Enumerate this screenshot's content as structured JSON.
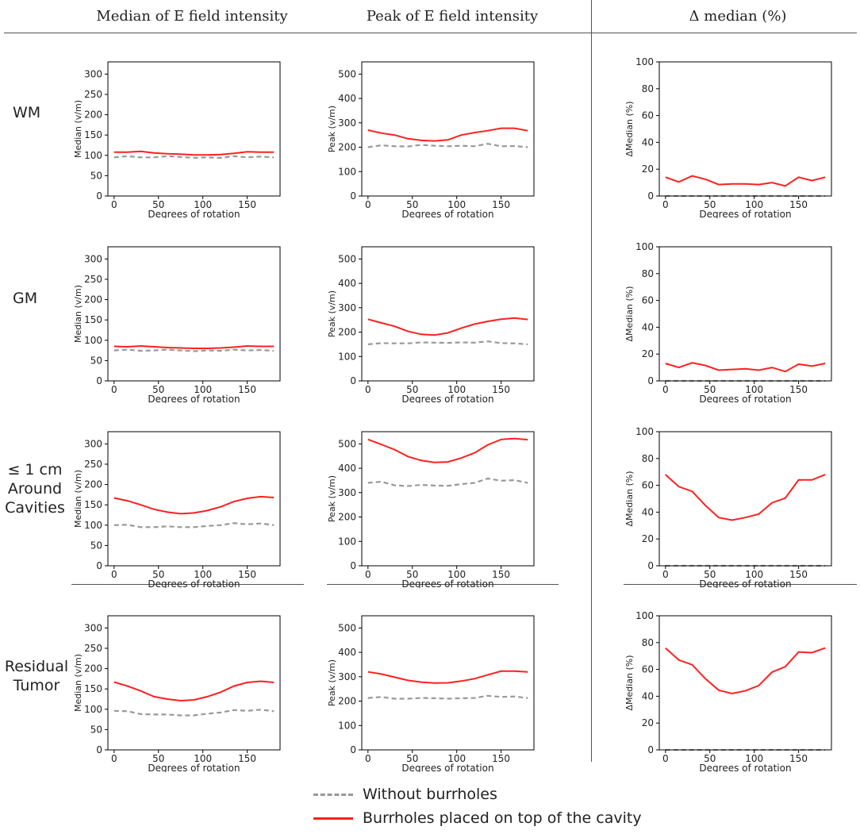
{
  "headers": {
    "col1": "Median of E field intensity",
    "col2": "Peak of E field intensity",
    "col3": "Δ median (%)"
  },
  "row_labels": {
    "wm": "WM",
    "gm": "GM",
    "cav_l1": "≤ 1 cm",
    "cav_l2": "Around",
    "cav_l3": "Cavities",
    "tumor_l1": "Residual",
    "tumor_l2": "Tumor"
  },
  "legend": {
    "without": "Without burrholes",
    "with": "Burrholes placed on top of the cavity",
    "without_color": "#999999",
    "with_color": "#ff2020"
  },
  "chart_data": [
    {
      "id": "wm-median",
      "type": "line",
      "xlabel": "Degrees of rotation",
      "ylabel": "Median (v/m)",
      "xlim": [
        -7,
        187
      ],
      "ylim": [
        0,
        330
      ],
      "xticks": [
        0,
        50,
        100,
        150
      ],
      "yticks": [
        0,
        50,
        100,
        150,
        200,
        250,
        300
      ],
      "x": [
        0,
        15,
        30,
        45,
        60,
        75,
        90,
        105,
        120,
        135,
        150,
        165,
        180
      ],
      "series": [
        {
          "name": "Burrholes placed on top of the cavity",
          "values": [
            108,
            108,
            110,
            106,
            104,
            103,
            101,
            101,
            102,
            105,
            109,
            108,
            108
          ]
        },
        {
          "name": "Without burrholes",
          "values": [
            95,
            98,
            95,
            95,
            98,
            96,
            94,
            95,
            94,
            98,
            95,
            97,
            95
          ]
        }
      ]
    },
    {
      "id": "wm-peak",
      "type": "line",
      "xlabel": "Degrees of rotation",
      "ylabel": "Peak (v/m)",
      "xlim": [
        -7,
        187
      ],
      "ylim": [
        0,
        550
      ],
      "xticks": [
        0,
        50,
        100,
        150
      ],
      "yticks": [
        0,
        100,
        200,
        300,
        400,
        500
      ],
      "x": [
        0,
        15,
        30,
        45,
        60,
        75,
        90,
        105,
        120,
        135,
        150,
        165,
        180
      ],
      "series": [
        {
          "name": "Burrholes placed on top of the cavity",
          "values": [
            270,
            258,
            250,
            235,
            228,
            226,
            230,
            250,
            260,
            268,
            278,
            278,
            268
          ]
        },
        {
          "name": "Without burrholes",
          "values": [
            200,
            208,
            204,
            203,
            210,
            206,
            204,
            206,
            204,
            214,
            204,
            205,
            200
          ]
        }
      ]
    },
    {
      "id": "wm-delta",
      "type": "line",
      "xlabel": "Degrees of rotation",
      "ylabel": "ΔMedian (%)",
      "xlim": [
        -7,
        187
      ],
      "ylim": [
        0,
        100
      ],
      "xticks": [
        0,
        50,
        100,
        150
      ],
      "yticks": [
        0,
        20,
        40,
        60,
        80,
        100
      ],
      "x": [
        0,
        15,
        30,
        45,
        60,
        75,
        90,
        105,
        120,
        135,
        150,
        165,
        180
      ],
      "series": [
        {
          "name": "Burrholes placed on top of the cavity",
          "values": [
            14,
            10.5,
            15,
            12.5,
            8.5,
            9,
            9,
            8.5,
            10,
            7.5,
            14,
            11.5,
            14
          ]
        },
        {
          "name": "Without burrholes",
          "values": [
            0,
            0,
            0,
            0,
            0,
            0,
            0,
            0,
            0,
            0,
            0,
            0,
            0
          ]
        }
      ]
    },
    {
      "id": "gm-median",
      "type": "line",
      "xlabel": "Degrees of rotation",
      "ylabel": "Median (v/m)",
      "xlim": [
        -7,
        187
      ],
      "ylim": [
        0,
        330
      ],
      "xticks": [
        0,
        50,
        100,
        150
      ],
      "yticks": [
        0,
        50,
        100,
        150,
        200,
        250,
        300
      ],
      "x": [
        0,
        15,
        30,
        45,
        60,
        75,
        90,
        105,
        120,
        135,
        150,
        165,
        180
      ],
      "series": [
        {
          "name": "Burrholes placed on top of the cavity",
          "values": [
            85,
            84,
            86,
            84,
            82,
            81,
            80,
            80,
            81,
            83,
            86,
            85,
            85
          ]
        },
        {
          "name": "Without burrholes",
          "values": [
            75,
            77,
            74,
            75,
            77,
            75,
            73,
            75,
            74,
            77,
            75,
            76,
            74
          ]
        }
      ]
    },
    {
      "id": "gm-peak",
      "type": "line",
      "xlabel": "Degrees of rotation",
      "ylabel": "Peak (v/m)",
      "xlim": [
        -7,
        187
      ],
      "ylim": [
        0,
        550
      ],
      "xticks": [
        0,
        50,
        100,
        150
      ],
      "yticks": [
        0,
        100,
        200,
        300,
        400,
        500
      ],
      "x": [
        0,
        15,
        30,
        45,
        60,
        75,
        90,
        105,
        120,
        135,
        150,
        165,
        180
      ],
      "series": [
        {
          "name": "Burrholes placed on top of the cavity",
          "values": [
            253,
            238,
            224,
            203,
            191,
            188,
            197,
            216,
            233,
            244,
            253,
            258,
            252
          ]
        },
        {
          "name": "Without burrholes",
          "values": [
            150,
            155,
            154,
            154,
            158,
            157,
            156,
            158,
            157,
            162,
            155,
            154,
            150
          ]
        }
      ]
    },
    {
      "id": "gm-delta",
      "type": "line",
      "xlabel": "Degrees of rotation",
      "ylabel": "ΔMedian (%)",
      "xlim": [
        -7,
        187
      ],
      "ylim": [
        0,
        100
      ],
      "xticks": [
        0,
        50,
        100,
        150
      ],
      "yticks": [
        0,
        20,
        40,
        60,
        80,
        100
      ],
      "x": [
        0,
        15,
        30,
        45,
        60,
        75,
        90,
        105,
        120,
        135,
        150,
        165,
        180
      ],
      "series": [
        {
          "name": "Burrholes placed on top of the cavity",
          "values": [
            13,
            10,
            13.5,
            11.5,
            8,
            8.5,
            9,
            8,
            10,
            7,
            12.5,
            11,
            13
          ]
        },
        {
          "name": "Without burrholes",
          "values": [
            0,
            0,
            0,
            0,
            0,
            0,
            0,
            0,
            0,
            0,
            0,
            0,
            0
          ]
        }
      ]
    },
    {
      "id": "cav-median",
      "type": "line",
      "xlabel": "Degrees of rotation",
      "ylabel": "Median (v/m)",
      "xlim": [
        -7,
        187
      ],
      "ylim": [
        0,
        330
      ],
      "xticks": [
        0,
        50,
        100,
        150
      ],
      "yticks": [
        0,
        50,
        100,
        150,
        200,
        250,
        300
      ],
      "x": [
        0,
        15,
        30,
        45,
        60,
        75,
        90,
        105,
        120,
        135,
        150,
        165,
        180
      ],
      "series": [
        {
          "name": "Burrholes placed on top of the cavity",
          "values": [
            167,
            160,
            150,
            139,
            132,
            128,
            130,
            136,
            145,
            158,
            166,
            170,
            168
          ]
        },
        {
          "name": "Without burrholes",
          "values": [
            100,
            101,
            95,
            95,
            97,
            95,
            95,
            98,
            100,
            105,
            102,
            104,
            100
          ]
        }
      ]
    },
    {
      "id": "cav-peak",
      "type": "line",
      "xlabel": "Degrees of rotation",
      "ylabel": "Peak (v/m)",
      "xlim": [
        -7,
        187
      ],
      "ylim": [
        0,
        550
      ],
      "xticks": [
        0,
        50,
        100,
        150
      ],
      "yticks": [
        0,
        100,
        200,
        300,
        400,
        500
      ],
      "x": [
        0,
        15,
        30,
        45,
        60,
        75,
        90,
        105,
        120,
        135,
        150,
        165,
        180
      ],
      "series": [
        {
          "name": "Burrholes placed on top of the cavity",
          "values": [
            518,
            498,
            476,
            448,
            432,
            424,
            426,
            442,
            463,
            496,
            518,
            522,
            517
          ]
        },
        {
          "name": "Without burrholes",
          "values": [
            340,
            345,
            330,
            327,
            332,
            329,
            328,
            335,
            340,
            358,
            349,
            351,
            340
          ]
        }
      ]
    },
    {
      "id": "cav-delta",
      "type": "line",
      "xlabel": "Degrees of rotation",
      "ylabel": "ΔMedian (%)",
      "xlim": [
        -7,
        187
      ],
      "ylim": [
        0,
        100
      ],
      "xticks": [
        0,
        50,
        100,
        150
      ],
      "yticks": [
        0,
        20,
        40,
        60,
        80,
        100
      ],
      "x": [
        0,
        15,
        30,
        45,
        60,
        75,
        90,
        105,
        120,
        135,
        150,
        165,
        180
      ],
      "series": [
        {
          "name": "Burrholes placed on top of the cavity",
          "values": [
            68,
            59,
            55.5,
            45,
            36,
            34,
            36,
            38.5,
            47,
            50.5,
            64,
            64,
            68
          ]
        },
        {
          "name": "Without burrholes",
          "values": [
            0,
            0,
            0,
            0,
            0,
            0,
            0,
            0,
            0,
            0,
            0,
            0,
            0
          ]
        }
      ]
    },
    {
      "id": "tumor-median",
      "type": "line",
      "xlabel": "Degrees of rotation",
      "ylabel": "Median (v/m)",
      "xlim": [
        -7,
        187
      ],
      "ylim": [
        0,
        330
      ],
      "xticks": [
        0,
        50,
        100,
        150
      ],
      "yticks": [
        0,
        50,
        100,
        150,
        200,
        250,
        300
      ],
      "x": [
        0,
        15,
        30,
        45,
        60,
        75,
        90,
        105,
        120,
        135,
        150,
        165,
        180
      ],
      "series": [
        {
          "name": "Burrholes placed on top of the cavity",
          "values": [
            167,
            157,
            145,
            131,
            125,
            121,
            123,
            131,
            142,
            157,
            166,
            169,
            166
          ]
        },
        {
          "name": "Without burrholes",
          "values": [
            96,
            95,
            88,
            87,
            87,
            85,
            85,
            89,
            92,
            98,
            96,
            99,
            95
          ]
        }
      ]
    },
    {
      "id": "tumor-peak",
      "type": "line",
      "xlabel": "Degrees of rotation",
      "ylabel": "Peak (v/m)",
      "xlim": [
        -7,
        187
      ],
      "ylim": [
        0,
        550
      ],
      "xticks": [
        0,
        50,
        100,
        150
      ],
      "yticks": [
        0,
        100,
        200,
        300,
        400,
        500
      ],
      "x": [
        0,
        15,
        30,
        45,
        60,
        75,
        90,
        105,
        120,
        135,
        150,
        165,
        180
      ],
      "series": [
        {
          "name": "Burrholes placed on top of the cavity",
          "values": [
            320,
            311,
            298,
            285,
            278,
            274,
            275,
            282,
            292,
            308,
            323,
            323,
            320
          ]
        },
        {
          "name": "Without burrholes",
          "values": [
            213,
            217,
            210,
            210,
            213,
            212,
            210,
            212,
            213,
            222,
            217,
            219,
            213
          ]
        }
      ]
    },
    {
      "id": "tumor-delta",
      "type": "line",
      "xlabel": "Degrees of rotation",
      "ylabel": "ΔMedian (%)",
      "xlim": [
        -7,
        187
      ],
      "ylim": [
        0,
        100
      ],
      "xticks": [
        0,
        50,
        100,
        150
      ],
      "yticks": [
        0,
        20,
        40,
        60,
        80,
        100
      ],
      "x": [
        0,
        15,
        30,
        45,
        60,
        75,
        90,
        105,
        120,
        135,
        150,
        165,
        180
      ],
      "series": [
        {
          "name": "Burrholes placed on top of the cavity",
          "values": [
            76,
            67,
            63.5,
            53,
            44.5,
            42,
            44,
            48,
            58,
            62,
            73,
            72.5,
            76
          ]
        },
        {
          "name": "Without burrholes",
          "values": [
            0,
            0,
            0,
            0,
            0,
            0,
            0,
            0,
            0,
            0,
            0,
            0,
            0
          ]
        }
      ]
    }
  ]
}
